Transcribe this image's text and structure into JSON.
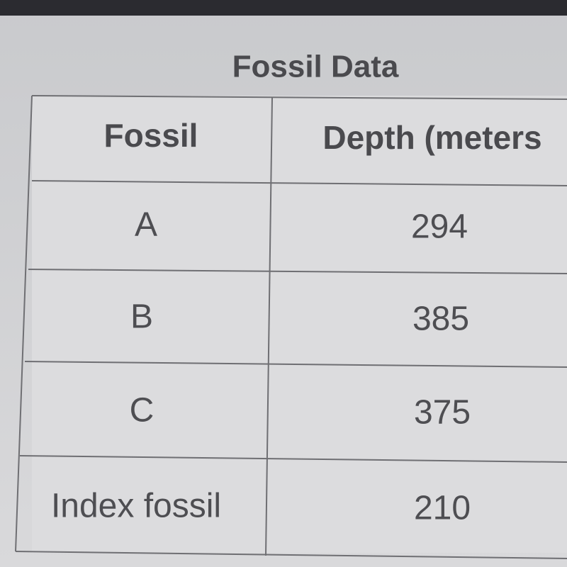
{
  "title": "Fossil Data",
  "table": {
    "header": [
      "Fossil",
      "Depth (meters"
    ],
    "rows": [
      [
        "A",
        "294"
      ],
      [
        "B",
        "385"
      ],
      [
        "C",
        "375"
      ],
      [
        "Index fossil",
        "210"
      ]
    ]
  }
}
